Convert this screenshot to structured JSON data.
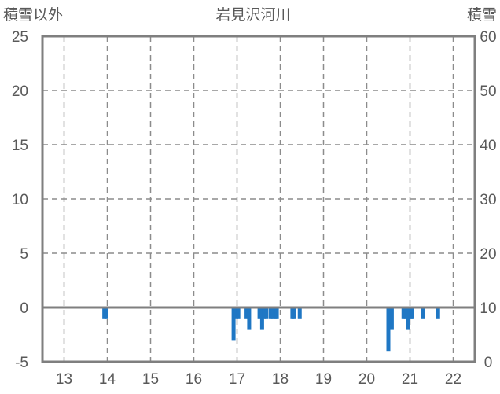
{
  "chart_data": {
    "type": "bar",
    "title": "岩見沢河川",
    "left_axis": {
      "label": "積雪以外",
      "ylim": [
        -5,
        25
      ],
      "ticks": [
        25,
        20,
        15,
        10,
        5,
        0,
        -5
      ]
    },
    "right_axis": {
      "label": "積雪",
      "ylim": [
        0,
        60
      ],
      "ticks": [
        60,
        50,
        40,
        30,
        20,
        10,
        0
      ]
    },
    "x_axis": {
      "xlim": [
        12.5,
        22.5
      ],
      "ticks": [
        13,
        14,
        15,
        16,
        17,
        18,
        19,
        20,
        21,
        22
      ]
    },
    "grid": true,
    "bar_color": "#1f77c4",
    "series": [
      {
        "axis": "left",
        "x": [
          13.93,
          13.98,
          16.92,
          16.98,
          17.03,
          17.22,
          17.28,
          17.52,
          17.58,
          17.62,
          17.68,
          17.78,
          17.83,
          17.88,
          17.92,
          18.28,
          18.32,
          18.45,
          20.5,
          20.58,
          20.85,
          20.9,
          20.95,
          21.02,
          21.05,
          21.3,
          21.65
        ],
        "values": [
          -1,
          -1,
          -3,
          -1,
          -1,
          -1,
          -2,
          -1,
          -2,
          -1,
          -1,
          -1,
          -1,
          -1,
          -1,
          -1,
          -1,
          -1,
          -4,
          -2,
          -1,
          -1,
          -2,
          -1,
          -1,
          -1,
          -1
        ]
      }
    ]
  }
}
